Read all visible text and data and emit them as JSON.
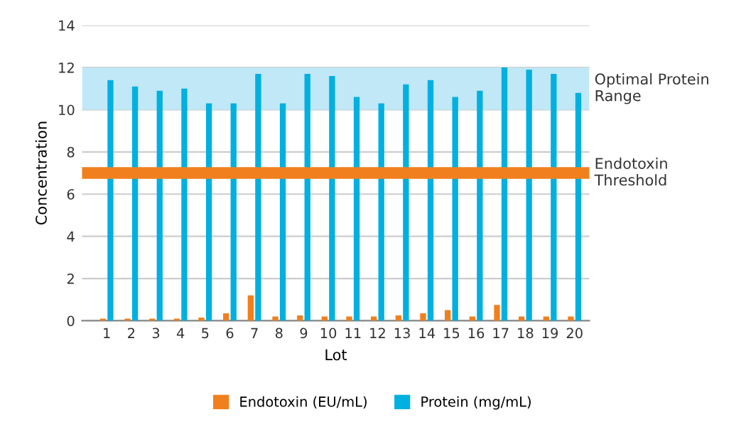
{
  "chart_data": {
    "type": "bar",
    "xlabel": "Lot",
    "ylabel": "Concentration",
    "categories": [
      "1",
      "2",
      "3",
      "4",
      "5",
      "6",
      "7",
      "8",
      "9",
      "10",
      "11",
      "12",
      "13",
      "14",
      "15",
      "16",
      "17",
      "18",
      "19",
      "20"
    ],
    "series": [
      {
        "name": "Endotoxin (EU/mL)",
        "color": "#f0801e",
        "values": [
          0.1,
          0.1,
          0.1,
          0.1,
          0.15,
          0.35,
          1.2,
          0.2,
          0.25,
          0.2,
          0.2,
          0.2,
          0.25,
          0.35,
          0.5,
          0.2,
          0.75,
          0.2,
          0.2,
          0.2
        ]
      },
      {
        "name": "Protein (mg/mL)",
        "color": "#00b0e0",
        "values": [
          11.4,
          11.1,
          10.9,
          11.0,
          10.3,
          10.3,
          11.7,
          10.3,
          11.7,
          11.6,
          10.6,
          10.3,
          11.2,
          11.4,
          10.6,
          10.9,
          12.0,
          11.9,
          11.7,
          10.8
        ]
      }
    ],
    "ylim": [
      0,
      14
    ],
    "yticks": [
      0,
      2,
      4,
      6,
      8,
      10,
      12,
      14
    ],
    "grid": "y",
    "legend": "bottom",
    "bands": [
      {
        "axis": "y",
        "from": 10,
        "to": 12,
        "label": "Optimal Protein Range",
        "color": "#c0e8f6"
      }
    ],
    "ref_lines": [
      {
        "axis": "y",
        "value": 7,
        "label": "Endotoxin Threshold",
        "color": "#f0801e",
        "line_style": "solid"
      }
    ]
  }
}
